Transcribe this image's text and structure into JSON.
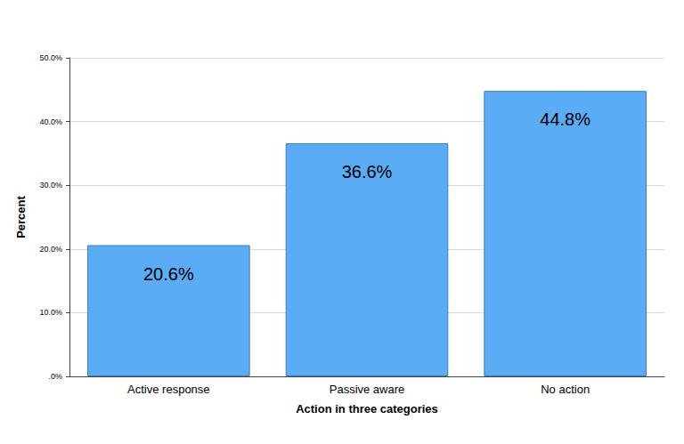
{
  "chart_data": {
    "type": "bar",
    "x_label": "Action in three categories",
    "y_label": "Percent",
    "categories": [
      "Active response",
      "Passive aware",
      "No action"
    ],
    "values": [
      20.6,
      36.6,
      44.8
    ],
    "value_labels": [
      "20.6%",
      "36.6%",
      "44.8%"
    ],
    "color": "#5aacf5",
    "ylim": [
      0,
      50
    ],
    "yticks": [
      {
        "value": 0,
        "label": ".0%"
      },
      {
        "value": 10,
        "label": "10.0%"
      },
      {
        "value": 20,
        "label": "20.0%"
      },
      {
        "value": 30,
        "label": "30.0%"
      },
      {
        "value": 40,
        "label": "40.0%"
      },
      {
        "value": 50,
        "label": "50.0%"
      }
    ],
    "grid": true,
    "data_labels": true
  }
}
